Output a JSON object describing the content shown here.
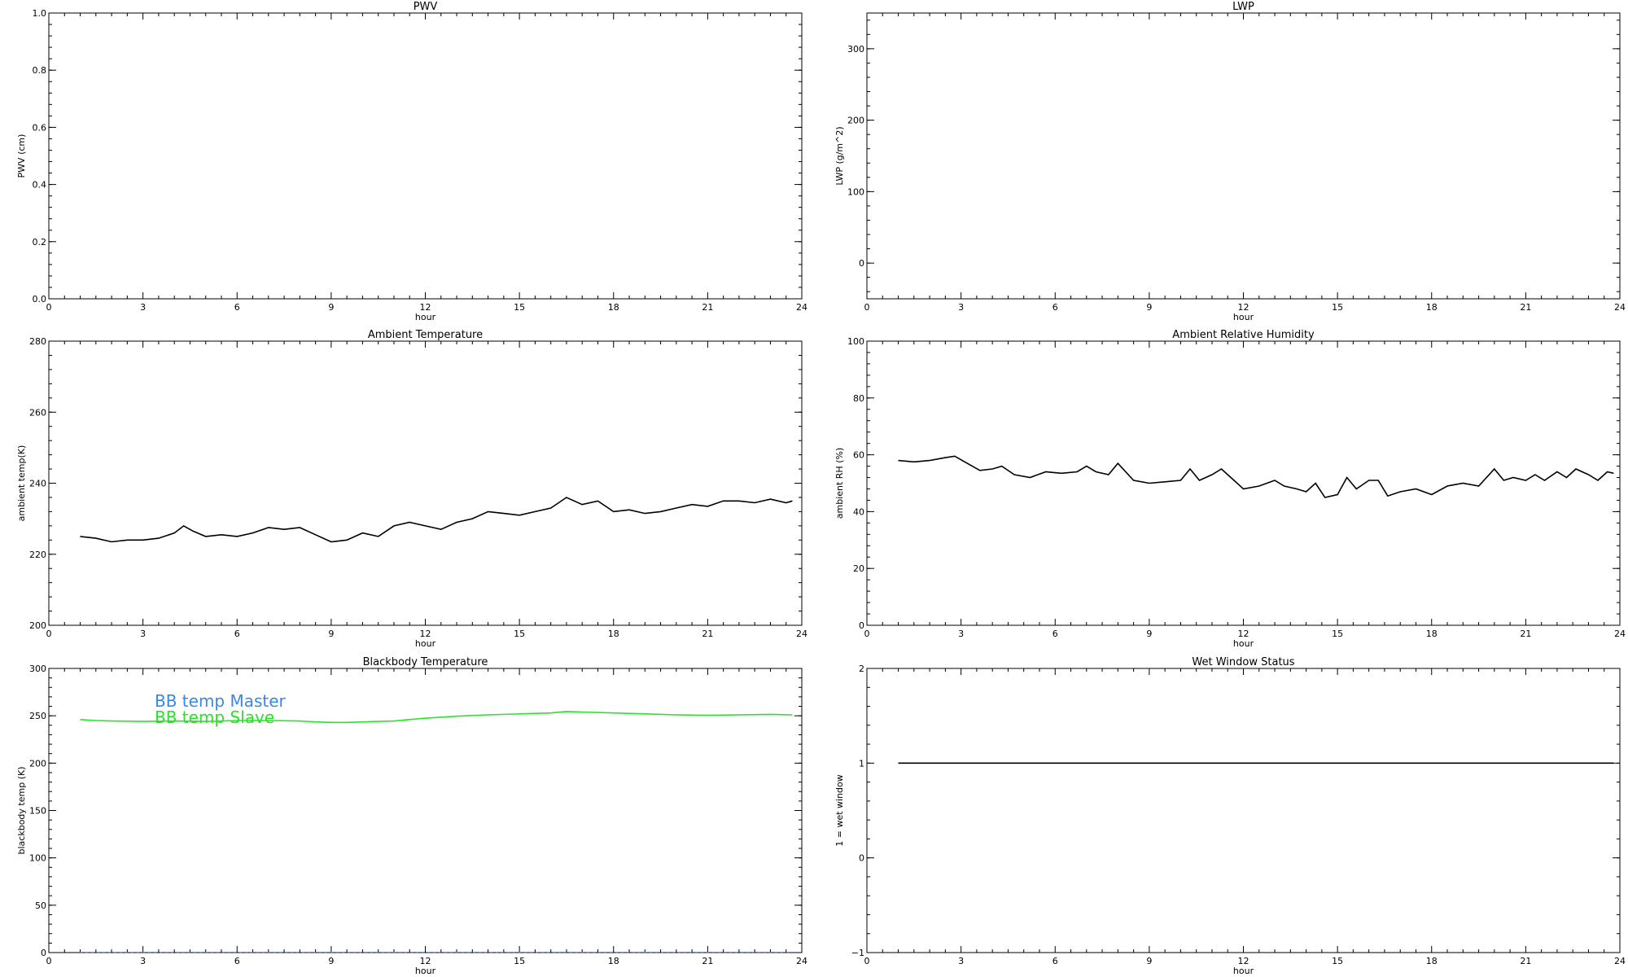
{
  "chart_data": [
    {
      "type": "line",
      "title": "PWV",
      "xlabel": "hour",
      "ylabel": "PWV (cm)",
      "xlim": [
        0,
        24
      ],
      "ylim": [
        0,
        1
      ],
      "xticks": [
        0,
        3,
        6,
        9,
        12,
        15,
        18,
        21,
        24
      ],
      "xtick_labels": [
        "0",
        "3",
        "6",
        "9",
        "12",
        "15",
        "18",
        "21",
        "24"
      ],
      "yticks": [
        0,
        0.2,
        0.4,
        0.6,
        0.8,
        1.0
      ],
      "ytick_labels": [
        "0.0",
        "0.2",
        "0.4",
        "0.6",
        "0.8",
        "1.0"
      ],
      "grid": false,
      "series": []
    },
    {
      "type": "line",
      "title": "LWP",
      "xlabel": "hour",
      "ylabel": "LWP (g/m^2)",
      "xlim": [
        0,
        24
      ],
      "ylim": [
        -50,
        350
      ],
      "xticks": [
        0,
        3,
        6,
        9,
        12,
        15,
        18,
        21,
        24
      ],
      "xtick_labels": [
        "0",
        "3",
        "6",
        "9",
        "12",
        "15",
        "18",
        "21",
        "24"
      ],
      "yticks": [
        0,
        100,
        200,
        300
      ],
      "ytick_labels": [
        "0",
        "100",
        "200",
        "300"
      ],
      "grid": false,
      "series": []
    },
    {
      "type": "line",
      "title": "Ambient Temperature",
      "xlabel": "hour",
      "ylabel": "ambient temp(K)",
      "xlim": [
        0,
        24
      ],
      "ylim": [
        200,
        280
      ],
      "xticks": [
        0,
        3,
        6,
        9,
        12,
        15,
        18,
        21,
        24
      ],
      "xtick_labels": [
        "0",
        "3",
        "6",
        "9",
        "12",
        "15",
        "18",
        "21",
        "24"
      ],
      "yticks": [
        200,
        220,
        240,
        260,
        280
      ],
      "ytick_labels": [
        "200",
        "220",
        "240",
        "260",
        "280"
      ],
      "grid": false,
      "series": [
        {
          "color": "#000000",
          "x": [
            1.0,
            1.5,
            2.0,
            2.5,
            3.0,
            3.5,
            4.0,
            4.3,
            4.6,
            5.0,
            5.5,
            6.0,
            6.5,
            7.0,
            7.5,
            8.0,
            8.5,
            9.0,
            9.5,
            10.0,
            10.5,
            11.0,
            11.5,
            12.0,
            12.5,
            13.0,
            13.5,
            14.0,
            14.5,
            15.0,
            15.5,
            16.0,
            16.5,
            17.0,
            17.5,
            18.0,
            18.5,
            19.0,
            19.5,
            20.0,
            20.5,
            21.0,
            21.5,
            22.0,
            22.5,
            23.0,
            23.5,
            23.7
          ],
          "y": [
            225,
            224.5,
            223.5,
            224,
            224,
            224.5,
            226,
            228,
            226.5,
            225,
            225.5,
            225,
            226,
            227.5,
            227,
            227.5,
            225.5,
            223.5,
            224,
            226,
            225,
            228,
            229,
            228,
            227,
            229,
            230,
            232,
            231.5,
            231,
            232,
            233,
            236,
            234,
            235,
            232,
            232.5,
            231.5,
            232,
            233,
            234,
            233.5,
            235,
            235,
            234.5,
            235.5,
            234.5,
            235
          ]
        }
      ]
    },
    {
      "type": "line",
      "title": "Ambient Relative Humidity",
      "xlabel": "hour",
      "ylabel": "ambient RH (%)",
      "xlim": [
        0,
        24
      ],
      "ylim": [
        0,
        100
      ],
      "xticks": [
        0,
        3,
        6,
        9,
        12,
        15,
        18,
        21,
        24
      ],
      "xtick_labels": [
        "0",
        "3",
        "6",
        "9",
        "12",
        "15",
        "18",
        "21",
        "24"
      ],
      "yticks": [
        0,
        20,
        40,
        60,
        80,
        100
      ],
      "ytick_labels": [
        "0",
        "20",
        "40",
        "60",
        "80",
        "100"
      ],
      "grid": false,
      "series": [
        {
          "color": "#000000",
          "x": [
            1.0,
            1.5,
            2.0,
            2.5,
            2.8,
            3.2,
            3.6,
            4.0,
            4.3,
            4.7,
            5.2,
            5.7,
            6.2,
            6.7,
            7.0,
            7.3,
            7.7,
            8.0,
            8.5,
            9.0,
            9.5,
            10.0,
            10.3,
            10.6,
            11.0,
            11.3,
            11.6,
            12.0,
            12.5,
            13.0,
            13.3,
            13.7,
            14.0,
            14.3,
            14.6,
            15.0,
            15.3,
            15.6,
            16.0,
            16.3,
            16.6,
            17.0,
            17.5,
            18.0,
            18.5,
            19.0,
            19.5,
            20.0,
            20.3,
            20.6,
            21.0,
            21.3,
            21.6,
            22.0,
            22.3,
            22.6,
            23.0,
            23.3,
            23.6,
            23.8
          ],
          "y": [
            58,
            57.5,
            58,
            59,
            59.5,
            57,
            54.5,
            55,
            56,
            53,
            52,
            54,
            53.5,
            54,
            56,
            54,
            53,
            57,
            51,
            50,
            50.5,
            51,
            55,
            51,
            53,
            55,
            52,
            48,
            49,
            51,
            49,
            48,
            47,
            50,
            45,
            46,
            52,
            48,
            51,
            51,
            45.5,
            47,
            48,
            46,
            49,
            50,
            49,
            55,
            51,
            52,
            51,
            53,
            51,
            54,
            52,
            55,
            53,
            51,
            54,
            53.5
          ]
        }
      ]
    },
    {
      "type": "line",
      "title": "Blackbody Temperature",
      "xlabel": "hour",
      "ylabel": "blackbody temp (K)",
      "xlim": [
        0,
        24
      ],
      "ylim": [
        0,
        300
      ],
      "xticks": [
        0,
        3,
        6,
        9,
        12,
        15,
        18,
        21,
        24
      ],
      "xtick_labels": [
        "0",
        "3",
        "6",
        "9",
        "12",
        "15",
        "18",
        "21",
        "24"
      ],
      "yticks": [
        0,
        50,
        100,
        150,
        200,
        250,
        300
      ],
      "ytick_labels": [
        "0",
        "50",
        "100",
        "150",
        "200",
        "250",
        "300"
      ],
      "grid": false,
      "legend_placement": "top-left",
      "series": [
        {
          "name": "BB temp Master",
          "color": "#3a87e8",
          "dotted": true,
          "x": [
            1.0,
            4.0,
            8.0,
            12.0,
            16.0,
            20.0,
            23.7
          ],
          "y": [
            0,
            0,
            0,
            0,
            0,
            0,
            0
          ]
        },
        {
          "name": "BB temp Slave",
          "color": "#29e329",
          "x": [
            1.0,
            1.5,
            2.0,
            3.0,
            4.0,
            5.0,
            6.0,
            7.0,
            8.0,
            8.5,
            9.0,
            9.5,
            10.0,
            10.5,
            11.0,
            11.5,
            12.0,
            12.5,
            13.0,
            14.0,
            15.0,
            16.0,
            16.5,
            17.0,
            18.0,
            19.0,
            20.0,
            21.0,
            22.0,
            23.0,
            23.7
          ],
          "y": [
            246,
            245,
            244.5,
            244,
            244.5,
            244,
            245,
            245,
            244.5,
            243.5,
            243,
            243,
            243.5,
            244,
            244.5,
            246,
            247.5,
            248.5,
            249.5,
            251,
            252,
            253,
            254.5,
            254,
            253,
            252,
            251,
            250.5,
            251,
            251.5,
            251
          ]
        }
      ]
    },
    {
      "type": "line",
      "title": "Wet Window Status",
      "xlabel": "hour",
      "ylabel": "1 = wet window",
      "xlim": [
        0,
        24
      ],
      "ylim": [
        -1,
        2
      ],
      "xticks": [
        0,
        3,
        6,
        9,
        12,
        15,
        18,
        21,
        24
      ],
      "xtick_labels": [
        "0",
        "3",
        "6",
        "9",
        "12",
        "15",
        "18",
        "21",
        "24"
      ],
      "yticks": [
        -1,
        0,
        1,
        2
      ],
      "ytick_labels": [
        "−1",
        "0",
        "1",
        "2"
      ],
      "grid": false,
      "series": [
        {
          "color": "#000000",
          "x": [
            1.0,
            23.8
          ],
          "y": [
            1,
            1
          ]
        }
      ]
    }
  ]
}
